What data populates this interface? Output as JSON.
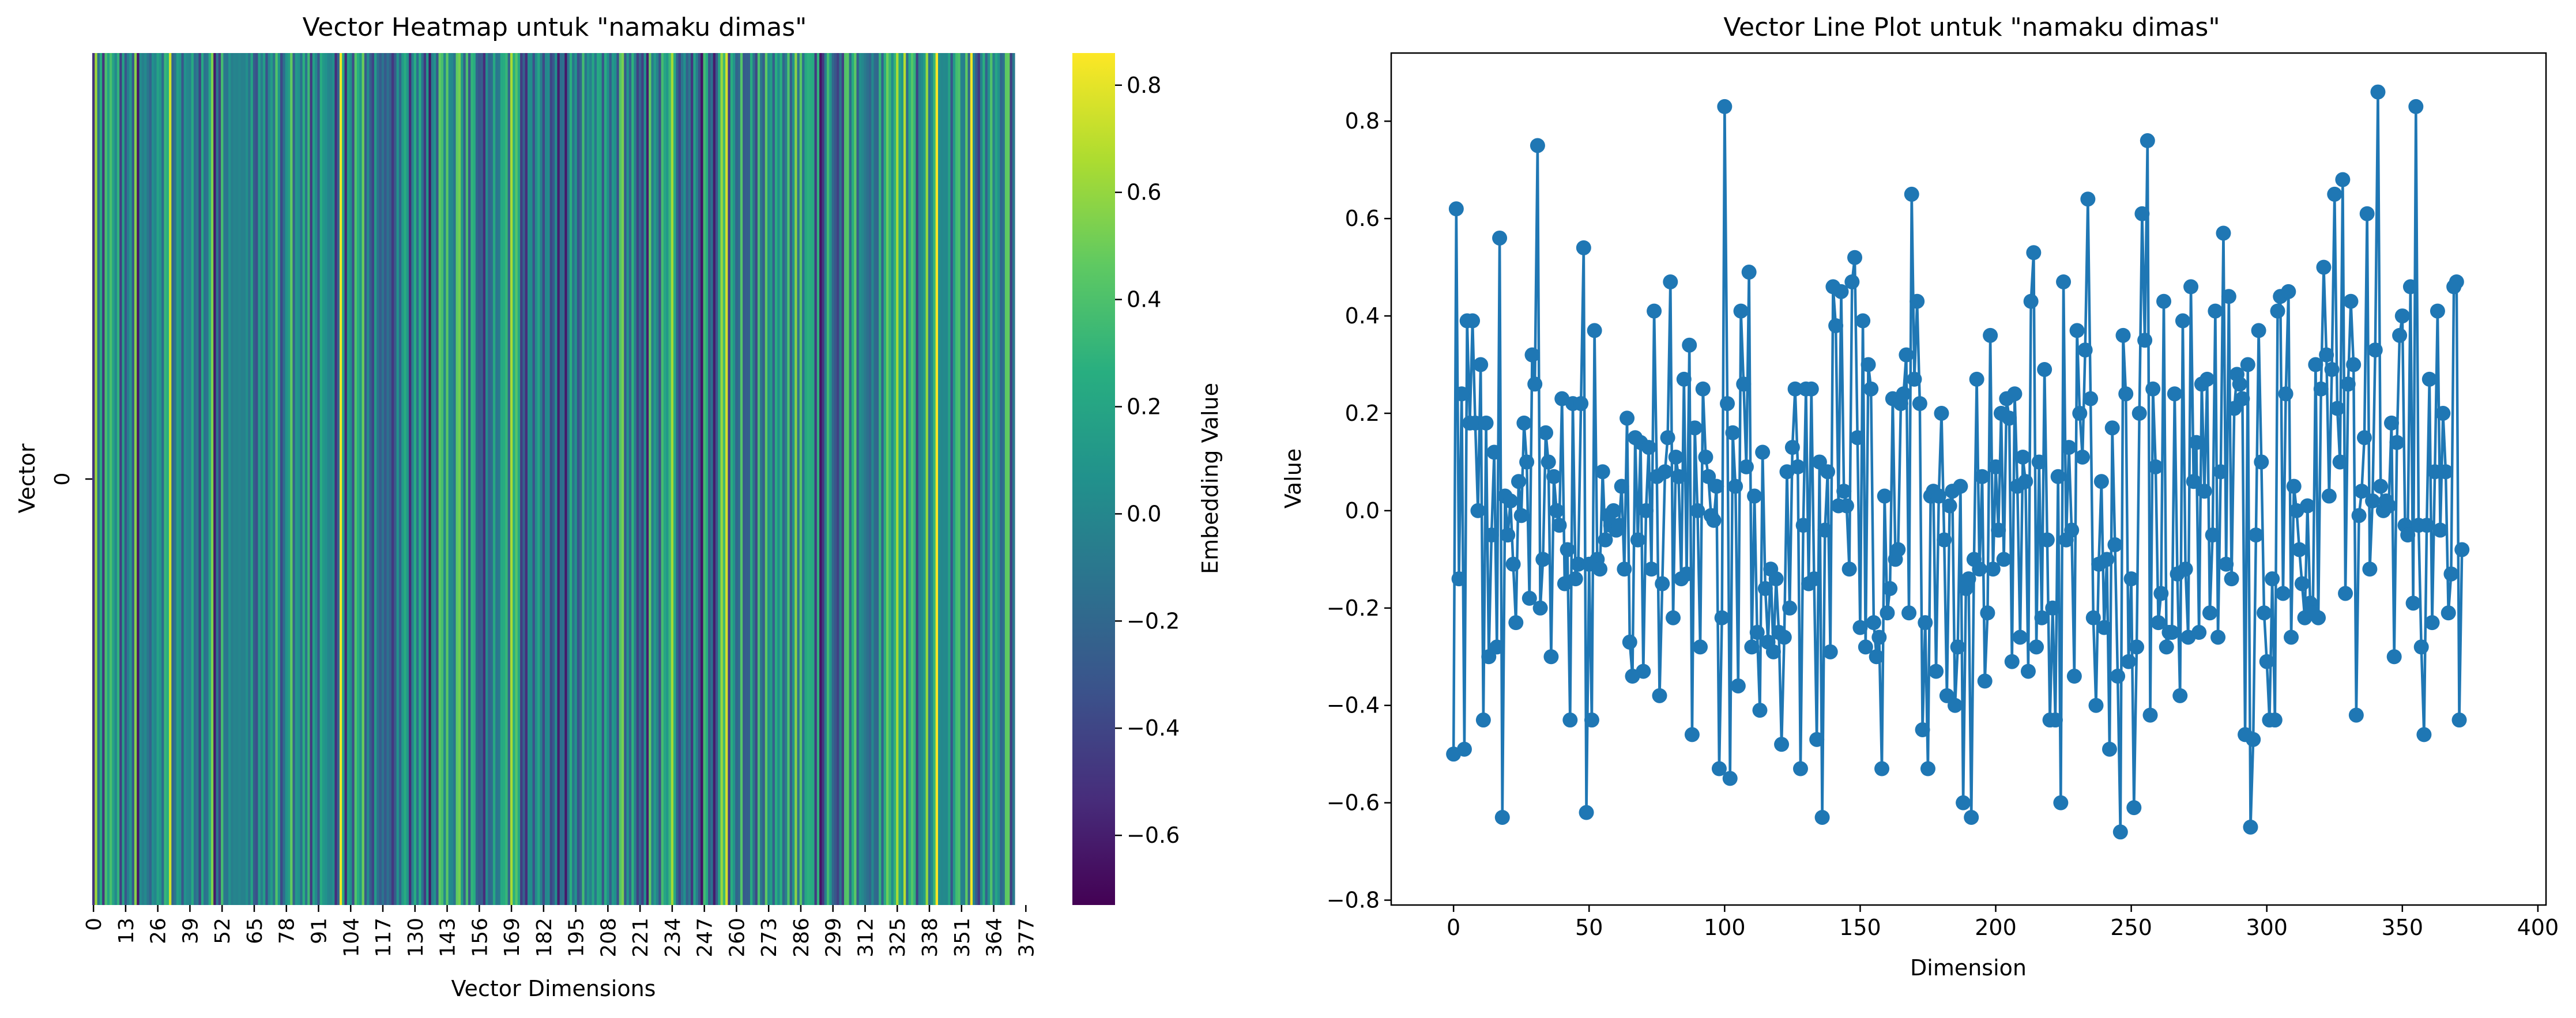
{
  "figure": {
    "left_title": "Vector Heatmap untuk \"namaku dimas\"",
    "right_title": "Vector Line Plot untuk \"namaku dimas\""
  },
  "chart_data": [
    {
      "type": "heatmap",
      "title": "Vector Heatmap untuk \"namaku dimas\"",
      "xlabel": "Vector Dimensions",
      "ylabel": "Vector",
      "rows": [
        "0"
      ],
      "x_tick_labels": [
        "0",
        "13",
        "26",
        "39",
        "52",
        "65",
        "78",
        "91",
        "104",
        "117",
        "130",
        "143",
        "156",
        "169",
        "182",
        "195",
        "208",
        "221",
        "234",
        "247",
        "260",
        "273",
        "286",
        "299",
        "312",
        "325",
        "338",
        "351",
        "364",
        "377"
      ],
      "colormap": "viridis",
      "colorbar": {
        "label": "Embedding Value",
        "range": [
          -0.73,
          0.86
        ],
        "ticks": [
          0.8,
          0.6,
          0.4,
          0.2,
          0.0,
          -0.2,
          -0.4,
          -0.6
        ],
        "tick_labels": [
          "0.8",
          "0.6",
          "0.4",
          "0.2",
          "0.0",
          "−0.2",
          "−0.4",
          "−0.6"
        ]
      },
      "values_source": "same 384 values as the line plot series",
      "grid": false
    },
    {
      "type": "line",
      "title": "Vector Line Plot untuk \"namaku dimas\"",
      "xlabel": "Dimension",
      "ylabel": "Value",
      "xlim": [
        -23,
        403
      ],
      "ylim": [
        -0.81,
        0.94
      ],
      "x_ticks": [
        0,
        50,
        100,
        150,
        200,
        250,
        300,
        350,
        400
      ],
      "y_ticks": [
        0.8,
        0.6,
        0.4,
        0.2,
        0.0,
        -0.2,
        -0.4,
        -0.6,
        -0.8
      ],
      "y_tick_labels": [
        "0.8",
        "0.6",
        "0.4",
        "0.2",
        "0.0",
        "−0.2",
        "−0.4",
        "−0.6",
        "−0.8"
      ],
      "marker": "circle",
      "color": "#1f77b4",
      "grid": false,
      "series": [
        {
          "values": [
            -0.5,
            0.62,
            -0.14,
            0.24,
            -0.49,
            0.39,
            0.18,
            0.39,
            0.18,
            0.0,
            0.3,
            -0.43,
            0.18,
            -0.3,
            -0.05,
            0.12,
            -0.28,
            0.56,
            -0.63,
            0.03,
            -0.05,
            0.02,
            -0.11,
            -0.23,
            0.06,
            -0.01,
            0.18,
            0.1,
            -0.18,
            0.32,
            0.26,
            0.75,
            -0.2,
            -0.1,
            0.16,
            0.1,
            -0.3,
            0.07,
            0.0,
            -0.03,
            0.23,
            -0.15,
            -0.08,
            -0.43,
            0.22,
            -0.14,
            -0.11,
            0.22,
            0.54,
            -0.62,
            -0.11,
            -0.43,
            0.37,
            -0.1,
            -0.12,
            0.08,
            -0.06,
            -0.01,
            -0.03,
            0.0,
            -0.04,
            -0.03,
            0.05,
            -0.12,
            0.19,
            -0.27,
            -0.34,
            0.15,
            -0.06,
            0.14,
            -0.33,
            0.0,
            0.13,
            -0.12,
            0.41,
            0.07,
            -0.38,
            -0.15,
            0.08,
            0.15,
            0.47,
            -0.22,
            0.11,
            0.07,
            -0.14,
            0.27,
            -0.13,
            0.34,
            -0.46,
            0.17,
            0.0,
            -0.28,
            0.25,
            0.11,
            0.07,
            -0.01,
            -0.02,
            0.05,
            -0.53,
            -0.22,
            0.83,
            0.22,
            -0.55,
            0.16,
            0.05,
            -0.36,
            0.41,
            0.26,
            0.09,
            0.49,
            -0.28,
            0.03,
            -0.25,
            -0.41,
            0.12,
            -0.16,
            -0.27,
            -0.12,
            -0.29,
            -0.14,
            -0.25,
            -0.48,
            -0.26,
            0.08,
            -0.2,
            0.13,
            0.25,
            0.09,
            -0.53,
            -0.03,
            0.25,
            -0.15,
            0.25,
            -0.14,
            -0.47,
            0.1,
            -0.63,
            -0.04,
            0.08,
            -0.29,
            0.46,
            0.38,
            0.01,
            0.45,
            0.04,
            0.01,
            -0.12,
            0.47,
            0.52,
            0.15,
            -0.24,
            0.39,
            -0.28,
            0.3,
            0.25,
            -0.23,
            -0.3,
            -0.26,
            -0.53,
            0.03,
            -0.21,
            -0.16,
            0.23,
            -0.1,
            -0.08,
            0.22,
            0.24,
            0.32,
            -0.21,
            0.65,
            0.27,
            0.43,
            0.22,
            -0.45,
            -0.23,
            -0.53,
            0.03,
            0.04,
            -0.33,
            0.03,
            0.2,
            -0.06,
            -0.38,
            0.01,
            0.04,
            -0.4,
            -0.28,
            0.05,
            -0.6,
            -0.16,
            -0.14,
            -0.63,
            -0.1,
            0.27,
            -0.12,
            0.07,
            -0.35,
            -0.21,
            0.36,
            -0.12,
            0.09,
            -0.04,
            0.2,
            -0.1,
            0.23,
            0.19,
            -0.31,
            0.24,
            0.05,
            -0.26,
            0.11,
            0.06,
            -0.33,
            0.43,
            0.53,
            -0.28,
            0.1,
            -0.22,
            0.29,
            -0.06,
            -0.43,
            -0.2,
            -0.43,
            0.07,
            -0.6,
            0.47,
            -0.06,
            0.13,
            -0.04,
            -0.34,
            0.37,
            0.2,
            0.11,
            0.33,
            0.64,
            0.23,
            -0.22,
            -0.4,
            -0.11,
            0.06,
            -0.24,
            -0.1,
            -0.49,
            0.17,
            -0.07,
            -0.34,
            -0.66,
            0.36,
            0.24,
            -0.31,
            -0.14,
            -0.61,
            -0.28,
            0.2,
            0.61,
            0.35,
            0.76,
            -0.42,
            0.25,
            0.09,
            -0.23,
            -0.17,
            0.43,
            -0.28,
            -0.25,
            -0.25,
            0.24,
            -0.13,
            -0.38,
            0.39,
            -0.12,
            -0.26,
            0.46,
            0.06,
            0.14,
            -0.25,
            0.26,
            0.04,
            0.27,
            -0.21,
            -0.05,
            0.41,
            -0.26,
            0.08,
            0.57,
            -0.11,
            0.44,
            -0.14,
            0.21,
            0.28,
            0.26,
            0.23,
            -0.46,
            0.3,
            -0.65,
            -0.47,
            -0.05,
            0.37,
            0.1,
            -0.21,
            -0.31,
            -0.43,
            -0.14,
            -0.43,
            0.41,
            0.44,
            -0.17,
            0.24,
            0.45,
            -0.26,
            0.05,
            0.0,
            -0.08,
            -0.15,
            -0.22,
            0.01,
            -0.19,
            -0.21,
            0.3,
            -0.22,
            0.25,
            0.5,
            0.32,
            0.03,
            0.29,
            0.65,
            0.21,
            0.1,
            0.68,
            -0.17,
            0.26,
            0.43,
            0.3,
            -0.42,
            -0.01,
            0.04,
            0.15,
            0.61,
            -0.12,
            0.02,
            0.33,
            0.86,
            0.05,
            0.0,
            0.02,
            0.01,
            0.18,
            -0.3,
            0.14,
            0.36,
            0.4,
            -0.03,
            -0.05,
            0.46,
            -0.19,
            0.83,
            -0.03,
            -0.28,
            -0.46,
            -0.03,
            0.27,
            -0.23,
            0.08,
            0.41,
            -0.04,
            0.2,
            0.08,
            -0.21,
            -0.13,
            0.46,
            0.47,
            -0.43,
            -0.08
          ]
        }
      ]
    }
  ]
}
